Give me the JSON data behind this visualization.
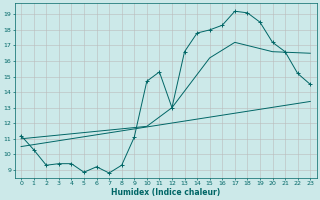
{
  "bg_color": "#cce9e9",
  "line_color": "#006666",
  "grid_color": "#bbbbbb",
  "xlabel": "Humidex (Indice chaleur)",
  "xlim_min": -0.5,
  "xlim_max": 23.5,
  "ylim_min": 8.5,
  "ylim_max": 19.7,
  "xticks": [
    0,
    1,
    2,
    3,
    4,
    5,
    6,
    7,
    8,
    9,
    10,
    11,
    12,
    13,
    14,
    15,
    16,
    17,
    18,
    19,
    20,
    21,
    22,
    23
  ],
  "yticks": [
    9,
    10,
    11,
    12,
    13,
    14,
    15,
    16,
    17,
    18,
    19
  ],
  "main_x": [
    0,
    1,
    2,
    3,
    4,
    5,
    6,
    7,
    8,
    9,
    10,
    11,
    12,
    13,
    14,
    15,
    16,
    17,
    18,
    19,
    20,
    21,
    22,
    23
  ],
  "main_y": [
    11.2,
    10.3,
    9.3,
    9.4,
    9.4,
    8.85,
    9.2,
    8.8,
    9.3,
    11.1,
    14.7,
    15.3,
    13.0,
    16.6,
    17.8,
    18.0,
    18.3,
    19.2,
    19.1,
    18.5,
    17.2,
    16.6,
    15.2,
    14.5
  ],
  "line2_x": [
    0,
    10,
    12,
    15,
    17,
    19,
    20,
    23
  ],
  "line2_y": [
    11.0,
    11.8,
    13.0,
    16.2,
    17.2,
    16.8,
    16.6,
    16.5
  ],
  "line3_x": [
    0,
    23
  ],
  "line3_y": [
    10.5,
    13.4
  ]
}
